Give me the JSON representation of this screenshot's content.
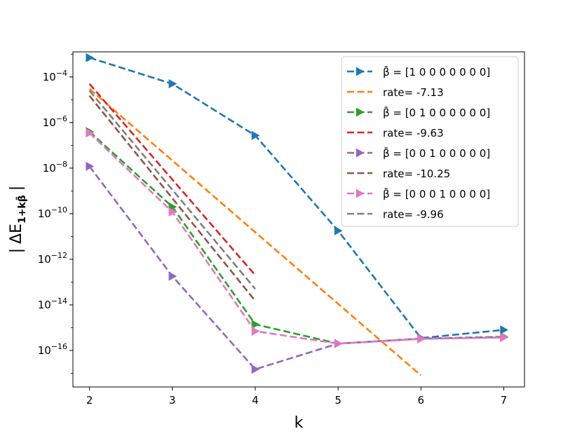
{
  "chart_data": {
    "type": "line",
    "title": "",
    "xlabel": "k",
    "ylabel_parts": {
      "bar_left": "|",
      "delta_e": "ΔE",
      "subscript": "1+kβ̄",
      "bar_right": "|"
    },
    "xlim": [
      1.8,
      7.25
    ],
    "ylim_log10": [
      -17.6,
      -2.9
    ],
    "x_ticks": [
      2,
      3,
      4,
      5,
      6,
      7
    ],
    "y_ticks": [
      {
        "exp": -4,
        "base": "10",
        "power": "−4"
      },
      {
        "exp": -6,
        "base": "10",
        "power": "−6"
      },
      {
        "exp": -8,
        "base": "10",
        "power": "−8"
      },
      {
        "exp": -10,
        "base": "10",
        "power": "−10"
      },
      {
        "exp": -12,
        "base": "10",
        "power": "−12"
      },
      {
        "exp": -14,
        "base": "10",
        "power": "−14"
      },
      {
        "exp": -16,
        "base": "10",
        "power": "−16"
      }
    ],
    "y_scale": "log",
    "grid": false,
    "legend_placement": "top-right",
    "series": [
      {
        "legend_prefix": "β̄ = ",
        "legend_value": "[1 0 0 0 0 0 0 0]",
        "color": "#1f77b4",
        "marker": "triangle-right",
        "x": [
          2,
          3,
          4,
          5,
          6,
          7
        ],
        "y": [
          0.0007,
          5e-05,
          2.7e-07,
          1.8e-11,
          3.5e-16,
          8e-16
        ]
      },
      {
        "legend_prefix": "rate= ",
        "legend_value": "-7.13",
        "color": "#ff7f0e",
        "marker": "none",
        "x": [
          2,
          6
        ],
        "y": [
          3e-05,
          8e-18
        ]
      },
      {
        "legend_prefix": "β̄ = ",
        "legend_value": "[0 1 0 0 0 0 0 0]",
        "color": "#2ca02c",
        "marker": "triangle-right",
        "x": [
          2,
          3,
          4,
          5,
          6,
          7
        ],
        "y": [
          4e-07,
          2e-10,
          1.4e-15,
          2e-16,
          3.3e-16,
          4e-16
        ]
      },
      {
        "legend_prefix": "rate= ",
        "legend_value": "-9.63",
        "color": "#d62728",
        "marker": "none",
        "x": [
          2,
          4
        ],
        "y": [
          5e-05,
          2e-13
        ]
      },
      {
        "legend_prefix": "β̄ = ",
        "legend_value": "[0 0 1 0 0 0 0 0]",
        "color": "#9467bd",
        "marker": "triangle-right",
        "x": [
          2,
          3,
          4,
          5,
          6,
          7
        ],
        "y": [
          1.2e-08,
          1.8e-13,
          1.5e-17,
          2e-16,
          3.3e-16,
          3.8e-16
        ]
      },
      {
        "legend_prefix": "rate= ",
        "legend_value": "-10.25",
        "color": "#8c564b",
        "marker": "none",
        "x": [
          2,
          4
        ],
        "y": [
          1.5e-05,
          1.5e-14
        ]
      },
      {
        "legend_prefix": "β̄ = ",
        "legend_value": "[0 0 0 1 0 0 0 0]",
        "color": "#e377c2",
        "marker": "triangle-right",
        "x": [
          2,
          3,
          4,
          5,
          6,
          7
        ],
        "y": [
          3.5e-07,
          1.2e-10,
          7e-16,
          2e-16,
          3.2e-16,
          3.7e-16
        ]
      },
      {
        "legend_prefix": "rate= ",
        "legend_value": "-9.96",
        "color": "#7f7f7f",
        "marker": "none",
        "x": [
          2,
          4
        ],
        "y": [
          2.5e-05,
          5e-14
        ]
      }
    ]
  }
}
